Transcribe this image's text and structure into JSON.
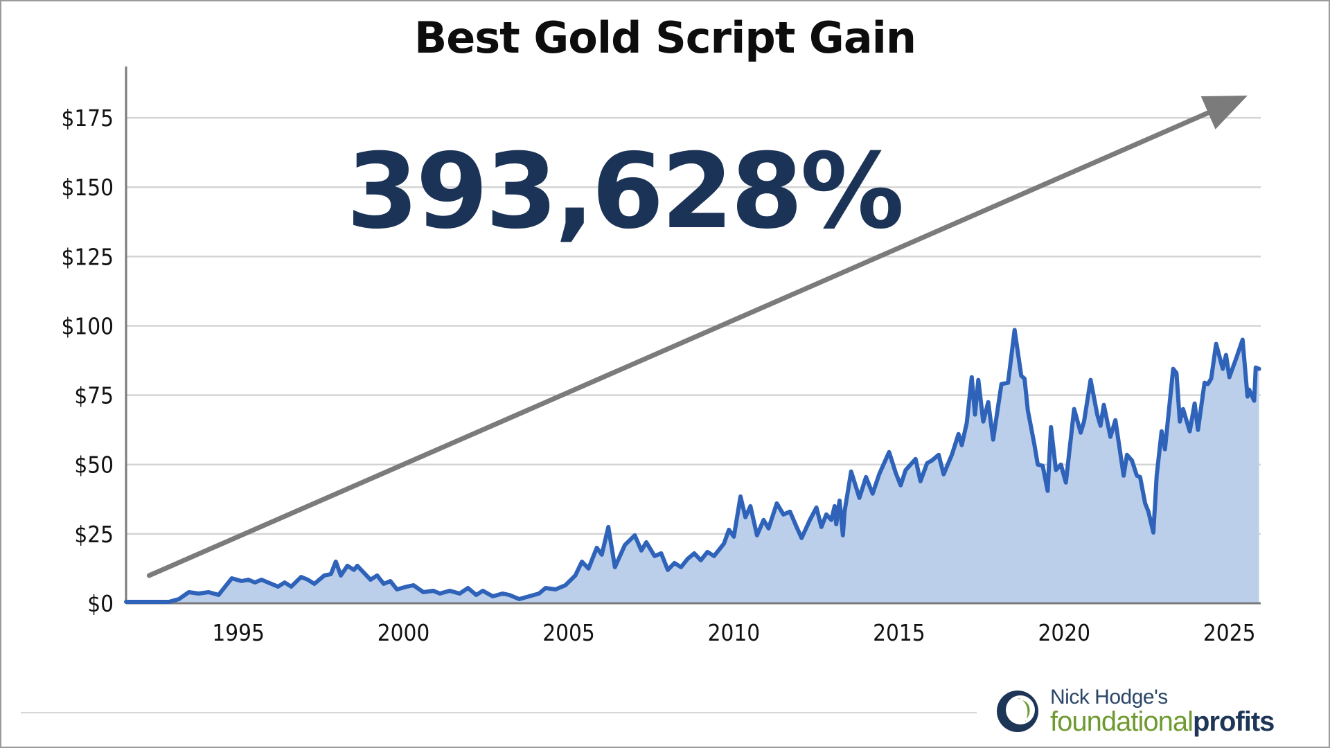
{
  "colors": {
    "line": "#2f63b9",
    "area": "#bccfea",
    "arrow": "#7b7b7b",
    "grid": "#d4d4d4",
    "axis": "#7a7a7a",
    "big_number": "#1b3356",
    "brand_green": "#6f9a30",
    "brand_navy": "#1d3557"
  },
  "annotation": {
    "text": "393,628%"
  },
  "brand": {
    "line1": "Nick Hodge's",
    "line2a": "foundational",
    "line2b": "profits",
    "logo_icon": "circle-swoosh-logo"
  },
  "chart_data": {
    "type": "area",
    "title": "Best Gold Script Gain",
    "xlabel": "",
    "ylabel": "",
    "xlim": [
      1991.6,
      2025.95
    ],
    "ylim": [
      0,
      190
    ],
    "y_ticks": [
      {
        "value": 0,
        "label": "$0"
      },
      {
        "value": 25,
        "label": "$25"
      },
      {
        "value": 50,
        "label": "$50"
      },
      {
        "value": 75,
        "label": "$75"
      },
      {
        "value": 100,
        "label": "$100"
      },
      {
        "value": 125,
        "label": "$125"
      },
      {
        "value": 150,
        "label": "$150"
      },
      {
        "value": 175,
        "label": "$175"
      }
    ],
    "x_ticks": [
      {
        "value": 1995,
        "label": "1995"
      },
      {
        "value": 2000,
        "label": "2000"
      },
      {
        "value": 2005,
        "label": "2005"
      },
      {
        "value": 2010,
        "label": "2010"
      },
      {
        "value": 2015,
        "label": "2015"
      },
      {
        "value": 2020,
        "label": "2020"
      },
      {
        "value": 2025,
        "label": "2025"
      }
    ],
    "grid": "horizontal",
    "legend": "none",
    "trend_arrow": {
      "from": [
        1992.3,
        10
      ],
      "to": [
        2025.55,
        183
      ]
    },
    "series": [
      {
        "points": [
          [
            1991.6,
            0.5
          ],
          [
            1992.2,
            0.5
          ],
          [
            1992.9,
            0.5
          ],
          [
            1993.2,
            1.5
          ],
          [
            1993.5,
            4
          ],
          [
            1993.8,
            3.5
          ],
          [
            1994.1,
            4
          ],
          [
            1994.4,
            3
          ],
          [
            1994.8,
            9
          ],
          [
            1995.1,
            8
          ],
          [
            1995.3,
            8.5
          ],
          [
            1995.5,
            7.5
          ],
          [
            1995.7,
            8.5
          ],
          [
            1995.9,
            7.5
          ],
          [
            1996.2,
            6
          ],
          [
            1996.4,
            7.5
          ],
          [
            1996.6,
            6
          ],
          [
            1996.9,
            9.5
          ],
          [
            1997.1,
            8.5
          ],
          [
            1997.3,
            7
          ],
          [
            1997.6,
            10
          ],
          [
            1997.8,
            10.5
          ],
          [
            1997.95,
            15
          ],
          [
            1998.1,
            10
          ],
          [
            1998.3,
            13.5
          ],
          [
            1998.5,
            12
          ],
          [
            1998.6,
            13.5
          ],
          [
            1998.8,
            11
          ],
          [
            1999.0,
            8.5
          ],
          [
            1999.2,
            10
          ],
          [
            1999.4,
            7
          ],
          [
            1999.6,
            8
          ],
          [
            1999.8,
            5
          ],
          [
            2000.1,
            6
          ],
          [
            2000.3,
            6.5
          ],
          [
            2000.6,
            4
          ],
          [
            2000.9,
            4.5
          ],
          [
            2001.1,
            3.5
          ],
          [
            2001.4,
            4.5
          ],
          [
            2001.7,
            3.5
          ],
          [
            2001.95,
            5.5
          ],
          [
            2002.2,
            3
          ],
          [
            2002.4,
            4.5
          ],
          [
            2002.7,
            2.5
          ],
          [
            2003.0,
            3.5
          ],
          [
            2003.2,
            3
          ],
          [
            2003.5,
            1.5
          ],
          [
            2003.8,
            2.5
          ],
          [
            2004.1,
            3.5
          ],
          [
            2004.3,
            5.5
          ],
          [
            2004.6,
            5
          ],
          [
            2004.9,
            6.5
          ],
          [
            2005.2,
            10
          ],
          [
            2005.4,
            15
          ],
          [
            2005.6,
            12.5
          ],
          [
            2005.85,
            20
          ],
          [
            2006.0,
            17.5
          ],
          [
            2006.2,
            27.5
          ],
          [
            2006.4,
            13
          ],
          [
            2006.7,
            21
          ],
          [
            2007.0,
            24.5
          ],
          [
            2007.2,
            19
          ],
          [
            2007.35,
            22
          ],
          [
            2007.6,
            17
          ],
          [
            2007.8,
            18
          ],
          [
            2008.0,
            12
          ],
          [
            2008.2,
            14.5
          ],
          [
            2008.4,
            13
          ],
          [
            2008.6,
            16
          ],
          [
            2008.8,
            18
          ],
          [
            2009.0,
            15.5
          ],
          [
            2009.2,
            18.5
          ],
          [
            2009.4,
            17
          ],
          [
            2009.7,
            21.5
          ],
          [
            2009.85,
            26.5
          ],
          [
            2010.0,
            24
          ],
          [
            2010.2,
            38.5
          ],
          [
            2010.35,
            31
          ],
          [
            2010.5,
            35
          ],
          [
            2010.7,
            24.5
          ],
          [
            2010.9,
            30
          ],
          [
            2011.05,
            27
          ],
          [
            2011.3,
            36
          ],
          [
            2011.5,
            32
          ],
          [
            2011.7,
            33
          ],
          [
            2011.9,
            27.5
          ],
          [
            2012.05,
            23.5
          ],
          [
            2012.3,
            30
          ],
          [
            2012.5,
            34.5
          ],
          [
            2012.65,
            27.5
          ],
          [
            2012.8,
            32
          ],
          [
            2012.95,
            30
          ],
          [
            2013.05,
            35
          ],
          [
            2013.1,
            28.5
          ],
          [
            2013.2,
            37
          ],
          [
            2013.3,
            24.5
          ],
          [
            2013.35,
            33
          ],
          [
            2013.55,
            47.5
          ],
          [
            2013.8,
            38
          ],
          [
            2014.0,
            45.5
          ],
          [
            2014.2,
            39.5
          ],
          [
            2014.4,
            46.5
          ],
          [
            2014.7,
            54.5
          ],
          [
            2014.9,
            47
          ],
          [
            2015.05,
            42.5
          ],
          [
            2015.2,
            48
          ],
          [
            2015.5,
            52
          ],
          [
            2015.65,
            44
          ],
          [
            2015.85,
            50.5
          ],
          [
            2016.0,
            51.5
          ],
          [
            2016.2,
            53.5
          ],
          [
            2016.35,
            46.5
          ],
          [
            2016.6,
            53.5
          ],
          [
            2016.8,
            61
          ],
          [
            2016.9,
            57
          ],
          [
            2017.05,
            65
          ],
          [
            2017.2,
            81.5
          ],
          [
            2017.3,
            68
          ],
          [
            2017.4,
            80.5
          ],
          [
            2017.55,
            65.5
          ],
          [
            2017.7,
            72.5
          ],
          [
            2017.85,
            59
          ],
          [
            2018.1,
            79
          ],
          [
            2018.3,
            79.5
          ],
          [
            2018.5,
            98.5
          ],
          [
            2018.7,
            82
          ],
          [
            2018.8,
            81
          ],
          [
            2018.9,
            69.5
          ],
          [
            2019.1,
            57
          ],
          [
            2019.2,
            50
          ],
          [
            2019.35,
            49.5
          ],
          [
            2019.5,
            40.5
          ],
          [
            2019.6,
            63.5
          ],
          [
            2019.75,
            48
          ],
          [
            2019.9,
            50
          ],
          [
            2020.05,
            43.5
          ],
          [
            2020.3,
            70
          ],
          [
            2020.5,
            61.5
          ],
          [
            2020.6,
            65.5
          ],
          [
            2020.8,
            80.5
          ],
          [
            2021.0,
            68
          ],
          [
            2021.1,
            64
          ],
          [
            2021.2,
            71.5
          ],
          [
            2021.4,
            60
          ],
          [
            2021.55,
            66
          ],
          [
            2021.8,
            46
          ],
          [
            2021.9,
            53.5
          ],
          [
            2022.05,
            51.5
          ],
          [
            2022.2,
            46
          ],
          [
            2022.3,
            45.5
          ],
          [
            2022.45,
            36
          ],
          [
            2022.55,
            33
          ],
          [
            2022.7,
            25.5
          ],
          [
            2022.8,
            46
          ],
          [
            2022.95,
            62
          ],
          [
            2023.05,
            55.5
          ],
          [
            2023.3,
            84.5
          ],
          [
            2023.4,
            83
          ],
          [
            2023.5,
            65.5
          ],
          [
            2023.6,
            70
          ],
          [
            2023.8,
            62
          ],
          [
            2023.95,
            72
          ],
          [
            2024.05,
            62.5
          ],
          [
            2024.25,
            79.5
          ],
          [
            2024.35,
            79
          ],
          [
            2024.45,
            81
          ],
          [
            2024.6,
            93.5
          ],
          [
            2024.8,
            84.5
          ],
          [
            2024.9,
            89.5
          ],
          [
            2025.0,
            81.5
          ],
          [
            2025.2,
            88
          ],
          [
            2025.4,
            95
          ],
          [
            2025.55,
            74.5
          ],
          [
            2025.6,
            77
          ],
          [
            2025.75,
            73
          ],
          [
            2025.8,
            85
          ],
          [
            2025.9,
            84.5
          ]
        ]
      }
    ]
  }
}
